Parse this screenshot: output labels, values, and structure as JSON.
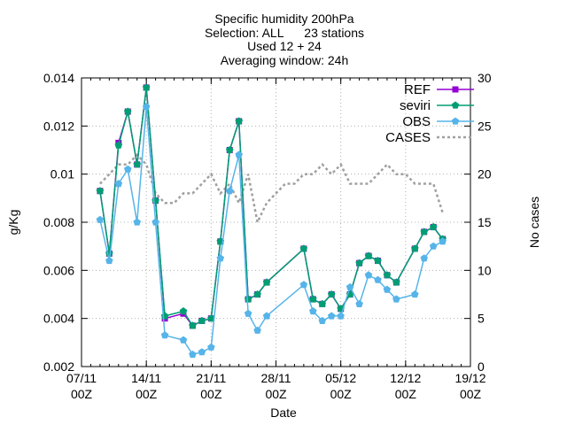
{
  "chart_data": {
    "type": "line",
    "title_lines": [
      "Specific humidity 200hPa",
      "Selection: ALL      23 stations",
      "Used 12 + 24",
      "Averaging window: 24h"
    ],
    "xlabel": "Date",
    "ylabel": "g/Kg",
    "y2label": "No cases",
    "x_ticks": [
      {
        "date": "2013-11-07",
        "line1": "07/11",
        "line2": "00Z"
      },
      {
        "date": "2013-11-14",
        "line1": "14/11",
        "line2": "00Z"
      },
      {
        "date": "2013-11-21",
        "line1": "21/11",
        "line2": "00Z"
      },
      {
        "date": "2013-11-28",
        "line1": "28/11",
        "line2": "00Z"
      },
      {
        "date": "2013-12-05",
        "line1": "05/12",
        "line2": "00Z"
      },
      {
        "date": "2013-12-12",
        "line1": "12/12",
        "line2": "00Z"
      },
      {
        "date": "2013-12-19",
        "line1": "19/12",
        "line2": "00Z"
      }
    ],
    "y_ticks": [
      "0.002",
      "0.004",
      "0.006",
      "0.008",
      "0.01",
      "0.012",
      "0.014"
    ],
    "y_ticks_values": [
      0.002,
      0.004,
      0.006,
      0.008,
      0.01,
      0.012,
      0.014
    ],
    "y2_ticks": [
      "0",
      "5",
      "10",
      "15",
      "20",
      "25",
      "30"
    ],
    "y2_ticks_values": [
      0,
      5,
      10,
      15,
      20,
      25,
      30
    ],
    "xlim": [
      "2013-11-07",
      "2013-12-19"
    ],
    "ylim": [
      0.002,
      0.014
    ],
    "y2lim": [
      0,
      30
    ],
    "grid": true,
    "legend_position": "top-right",
    "series": [
      {
        "name": "REF",
        "axis": "y",
        "color": "#9400d3",
        "marker": "square",
        "style": "solid",
        "points": [
          [
            "2013-11-09",
            0.0093
          ],
          [
            "2013-11-10",
            0.0067
          ],
          [
            "2013-11-11",
            0.0113
          ],
          [
            "2013-11-12",
            0.0126
          ],
          [
            "2013-11-13",
            0.0104
          ],
          [
            "2013-11-14",
            0.0136
          ],
          [
            "2013-11-15",
            0.0089
          ],
          [
            "2013-11-16",
            0.004
          ],
          [
            "2013-11-18",
            0.0042
          ],
          [
            "2013-11-19",
            0.0037
          ],
          [
            "2013-11-20",
            0.0039
          ],
          [
            "2013-11-21",
            0.004
          ],
          [
            "2013-11-22",
            0.0072
          ],
          [
            "2013-11-23",
            0.011
          ],
          [
            "2013-11-24",
            0.0122
          ],
          [
            "2013-11-25",
            0.0048
          ],
          [
            "2013-11-26",
            0.005
          ],
          [
            "2013-11-27",
            0.0055
          ],
          [
            "2013-12-01",
            0.0069
          ],
          [
            "2013-12-02",
            0.0048
          ],
          [
            "2013-12-03",
            0.0046
          ],
          [
            "2013-12-04",
            0.005
          ],
          [
            "2013-12-05",
            0.0044
          ],
          [
            "2013-12-06",
            0.005
          ],
          [
            "2013-12-07",
            0.0063
          ],
          [
            "2013-12-08",
            0.0066
          ],
          [
            "2013-12-09",
            0.0064
          ],
          [
            "2013-12-10",
            0.0058
          ],
          [
            "2013-12-11",
            0.0055
          ],
          [
            "2013-12-13",
            0.0069
          ],
          [
            "2013-12-14",
            0.0076
          ],
          [
            "2013-12-15",
            0.0078
          ],
          [
            "2013-12-16",
            0.0073
          ]
        ]
      },
      {
        "name": "seviri",
        "axis": "y",
        "color": "#009e73",
        "marker": "pentagon",
        "style": "solid",
        "points": [
          [
            "2013-11-09",
            0.0093
          ],
          [
            "2013-11-10",
            0.0067
          ],
          [
            "2013-11-11",
            0.0112
          ],
          [
            "2013-11-12",
            0.0126
          ],
          [
            "2013-11-13",
            0.0104
          ],
          [
            "2013-11-14",
            0.0136
          ],
          [
            "2013-11-15",
            0.0089
          ],
          [
            "2013-11-16",
            0.0041
          ],
          [
            "2013-11-18",
            0.0043
          ],
          [
            "2013-11-19",
            0.0037
          ],
          [
            "2013-11-20",
            0.0039
          ],
          [
            "2013-11-21",
            0.004
          ],
          [
            "2013-11-22",
            0.0072
          ],
          [
            "2013-11-23",
            0.011
          ],
          [
            "2013-11-24",
            0.0122
          ],
          [
            "2013-11-25",
            0.0048
          ],
          [
            "2013-11-26",
            0.005
          ],
          [
            "2013-11-27",
            0.0055
          ],
          [
            "2013-12-01",
            0.0069
          ],
          [
            "2013-12-02",
            0.0048
          ],
          [
            "2013-12-03",
            0.0046
          ],
          [
            "2013-12-04",
            0.005
          ],
          [
            "2013-12-05",
            0.0044
          ],
          [
            "2013-12-06",
            0.005
          ],
          [
            "2013-12-07",
            0.0063
          ],
          [
            "2013-12-08",
            0.0066
          ],
          [
            "2013-12-09",
            0.0064
          ],
          [
            "2013-12-10",
            0.0058
          ],
          [
            "2013-12-11",
            0.0055
          ],
          [
            "2013-12-13",
            0.0069
          ],
          [
            "2013-12-14",
            0.0076
          ],
          [
            "2013-12-15",
            0.0078
          ],
          [
            "2013-12-16",
            0.0073
          ]
        ]
      },
      {
        "name": "OBS",
        "axis": "y",
        "color": "#56b4e9",
        "marker": "pentagon",
        "style": "solid",
        "points": [
          [
            "2013-11-09",
            0.0081
          ],
          [
            "2013-11-10",
            0.0064
          ],
          [
            "2013-11-11",
            0.0096
          ],
          [
            "2013-11-12",
            0.0102
          ],
          [
            "2013-11-13",
            0.008
          ],
          [
            "2013-11-14",
            0.0128
          ],
          [
            "2013-11-15",
            0.008
          ],
          [
            "2013-11-16",
            0.0033
          ],
          [
            "2013-11-18",
            0.0031
          ],
          [
            "2013-11-19",
            0.0025
          ],
          [
            "2013-11-20",
            0.0026
          ],
          [
            "2013-11-21",
            0.0028
          ],
          [
            "2013-11-22",
            0.0065
          ],
          [
            "2013-11-23",
            0.0093
          ],
          [
            "2013-11-24",
            0.0108
          ],
          [
            "2013-11-25",
            0.0042
          ],
          [
            "2013-11-26",
            0.0035
          ],
          [
            "2013-11-27",
            0.0041
          ],
          [
            "2013-12-01",
            0.0054
          ],
          [
            "2013-12-02",
            0.0043
          ],
          [
            "2013-12-03",
            0.0039
          ],
          [
            "2013-12-04",
            0.0041
          ],
          [
            "2013-12-05",
            0.0041
          ],
          [
            "2013-12-06",
            0.0053
          ],
          [
            "2013-12-07",
            0.0046
          ],
          [
            "2013-12-08",
            0.0058
          ],
          [
            "2013-12-09",
            0.0056
          ],
          [
            "2013-12-10",
            0.0052
          ],
          [
            "2013-12-11",
            0.0048
          ],
          [
            "2013-12-13",
            0.005
          ],
          [
            "2013-12-14",
            0.0065
          ],
          [
            "2013-12-15",
            0.007
          ],
          [
            "2013-12-16",
            0.0072
          ]
        ]
      },
      {
        "name": "CASES",
        "axis": "y2",
        "color": "#a0a0a0",
        "marker": "none",
        "style": "dotted",
        "points": [
          [
            "2013-11-09",
            19
          ],
          [
            "2013-11-10",
            20
          ],
          [
            "2013-11-11",
            21
          ],
          [
            "2013-11-12",
            21
          ],
          [
            "2013-11-13",
            22
          ],
          [
            "2013-11-14",
            21
          ],
          [
            "2013-11-15",
            18
          ],
          [
            "2013-11-16",
            17
          ],
          [
            "2013-11-17",
            17
          ],
          [
            "2013-11-18",
            18
          ],
          [
            "2013-11-19",
            18
          ],
          [
            "2013-11-20",
            19
          ],
          [
            "2013-11-21",
            20
          ],
          [
            "2013-11-22",
            18
          ],
          [
            "2013-11-23",
            19
          ],
          [
            "2013-11-24",
            17
          ],
          [
            "2013-11-25",
            20
          ],
          [
            "2013-11-26",
            15
          ],
          [
            "2013-11-27",
            17
          ],
          [
            "2013-11-28",
            18
          ],
          [
            "2013-11-29",
            19
          ],
          [
            "2013-11-30",
            19
          ],
          [
            "2013-12-01",
            20
          ],
          [
            "2013-12-02",
            20
          ],
          [
            "2013-12-03",
            21
          ],
          [
            "2013-12-04",
            20
          ],
          [
            "2013-12-05",
            21
          ],
          [
            "2013-12-06",
            19
          ],
          [
            "2013-12-07",
            19
          ],
          [
            "2013-12-08",
            19
          ],
          [
            "2013-12-09",
            20
          ],
          [
            "2013-12-10",
            21
          ],
          [
            "2013-12-11",
            20
          ],
          [
            "2013-12-12",
            20
          ],
          [
            "2013-12-13",
            19
          ],
          [
            "2013-12-14",
            19
          ],
          [
            "2013-12-15",
            19
          ],
          [
            "2013-12-16",
            16
          ]
        ]
      }
    ]
  }
}
